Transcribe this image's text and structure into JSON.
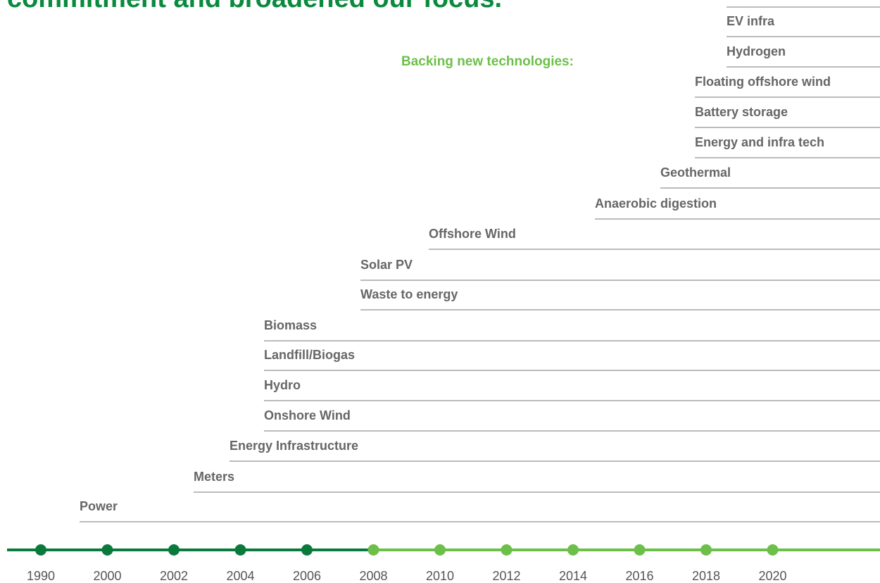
{
  "heading": "commitment and broadened our focus.",
  "subheading": "Backing new technologies:",
  "technologies": [
    "Power",
    "Meters",
    "Energy Infrastructure",
    "Onshore Wind",
    "Hydro",
    "Landfill/Biogas",
    "Biomass",
    "Waste to energy",
    "Solar PV",
    "Offshore Wind",
    "Anaerobic digestion",
    "Geothermal",
    "Energy and infra tech",
    "Battery storage",
    "Floating offshore wind",
    "Hydrogen",
    "EV infra"
  ],
  "years": [
    "1990",
    "2000",
    "2002",
    "2004",
    "2006",
    "2008",
    "2010",
    "2012",
    "2014",
    "2016",
    "2018",
    "2020"
  ]
}
